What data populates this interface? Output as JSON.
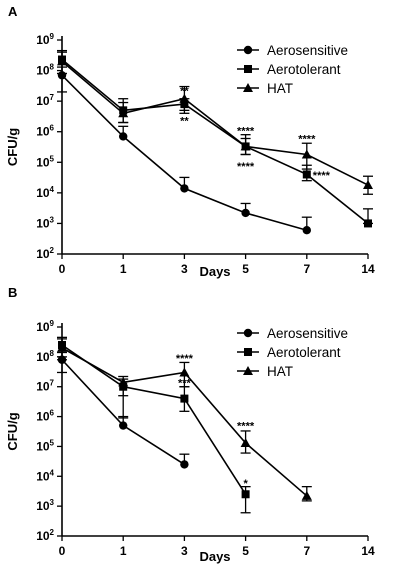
{
  "chart_data": [
    {
      "panel": "A",
      "type": "line",
      "xlabel": "Days",
      "ylabel": "CFU/g",
      "y_scale": "log",
      "ylim": [
        100,
        1000000000
      ],
      "x_categories": [
        "0",
        "1",
        "3",
        "5",
        "7",
        "14"
      ],
      "y_ticks": [
        2,
        3,
        4,
        5,
        6,
        7,
        8,
        9
      ],
      "legend_position": "top-right",
      "series": [
        {
          "name": "Aerosensitive",
          "marker": "circle",
          "x": [
            "0",
            "1",
            "3",
            "5",
            "7"
          ],
          "y": [
            70000000,
            700000,
            14000,
            2200,
            600
          ],
          "err_up": [
            130000000,
            1500000,
            32000,
            4500,
            1600
          ],
          "err_down": [
            20000000,
            0,
            0,
            0,
            0
          ]
        },
        {
          "name": "Aerotolerant",
          "marker": "square",
          "x": [
            "0",
            "1",
            "3",
            "5",
            "7",
            "14"
          ],
          "y": [
            230000000,
            5000000,
            8000000,
            330000,
            40000,
            1000
          ],
          "err_up": [
            450000000,
            9000000,
            12000000,
            600000,
            80000,
            3000
          ],
          "err_down": [
            80000000,
            2000000,
            4000000,
            180000,
            25000,
            1000
          ]
        },
        {
          "name": "HAT",
          "marker": "triangle",
          "x": [
            "0",
            "1",
            "3",
            "5",
            "7",
            "14"
          ],
          "y": [
            200000000,
            4000000,
            12000000,
            330000,
            180000,
            18000
          ],
          "err_up": [
            400000000,
            12000000,
            30000000,
            800000,
            420000,
            35000
          ],
          "err_down": [
            80000000,
            2000000,
            5000000,
            180000,
            60000,
            9000
          ]
        }
      ],
      "annotations": [
        {
          "x": "3",
          "y": 22000000,
          "text": "**"
        },
        {
          "x": "3",
          "y": 2300000,
          "text": "**"
        },
        {
          "x": "5",
          "y": 1100000,
          "text": "****"
        },
        {
          "x": "5",
          "y": 75000,
          "text": "****"
        },
        {
          "x": "7",
          "y": 600000,
          "text": "****"
        },
        {
          "x": "7",
          "y": 38000,
          "text": "****",
          "offset": "right"
        }
      ]
    },
    {
      "panel": "B",
      "type": "line",
      "xlabel": "Days",
      "ylabel": "CFU/g",
      "y_scale": "log",
      "ylim": [
        100,
        1000000000
      ],
      "x_categories": [
        "0",
        "1",
        "3",
        "5",
        "7",
        "14"
      ],
      "y_ticks": [
        2,
        3,
        4,
        5,
        6,
        7,
        8,
        9
      ],
      "legend_position": "top-right",
      "series": [
        {
          "name": "Aerosensitive",
          "marker": "circle",
          "x": [
            "0",
            "1",
            "3"
          ],
          "y": [
            80000000,
            500000,
            25000
          ],
          "err_up": [
            140000000,
            1000000,
            55000
          ],
          "err_down": [
            30000000,
            0,
            0
          ]
        },
        {
          "name": "Aerotolerant",
          "marker": "square",
          "x": [
            "0",
            "1",
            "3",
            "5"
          ],
          "y": [
            250000000,
            10000000,
            4000000,
            2500
          ],
          "err_up": [
            450000000,
            18000000,
            10000000,
            4500
          ],
          "err_down": [
            100000000,
            900000,
            1500000,
            600
          ]
        },
        {
          "name": "HAT",
          "marker": "triangle",
          "x": [
            "0",
            "1",
            "3",
            "5",
            "7"
          ],
          "y": [
            200000000,
            14000000,
            30000000,
            130000,
            2200
          ],
          "err_up": [
            400000000,
            22000000,
            65000000,
            330000,
            4500
          ],
          "err_down": [
            80000000,
            5000000,
            10000000,
            60000,
            1500
          ]
        }
      ],
      "annotations": [
        {
          "x": "3",
          "y": 90000000,
          "text": "****"
        },
        {
          "x": "3",
          "y": 14000000,
          "text": "***"
        },
        {
          "x": "5",
          "y": 500000,
          "text": "****"
        },
        {
          "x": "5",
          "y": 6000,
          "text": "*"
        }
      ]
    }
  ]
}
